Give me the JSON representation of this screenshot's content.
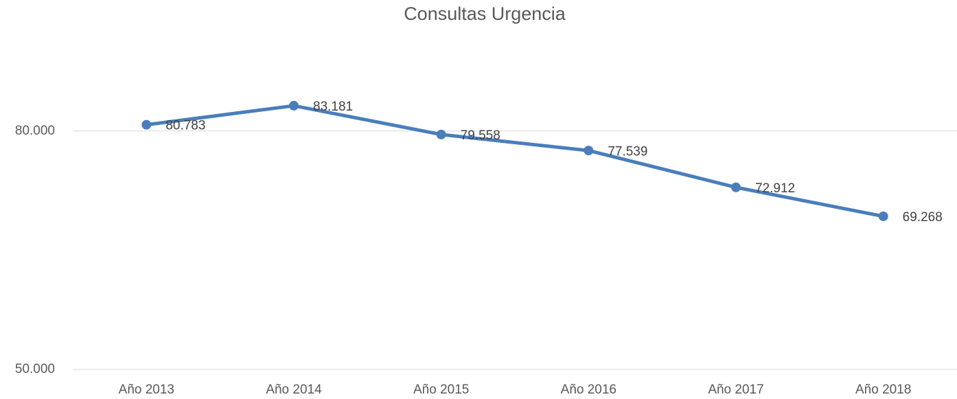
{
  "chart_data": {
    "type": "line",
    "title": "Consultas Urgencia",
    "categories": [
      "Año 2013",
      "Año 2014",
      "Año 2015",
      "Año 2016",
      "Año 2017",
      "Año 2018"
    ],
    "series": [
      {
        "name": "Consultas Urgencia",
        "color": "#4a7ebb",
        "values": [
          80783,
          83181,
          79558,
          77539,
          72912,
          69268
        ],
        "value_labels": [
          "80.783",
          "83.181",
          "79.558",
          "77.539",
          "72.912",
          "69.268"
        ]
      }
    ],
    "ylim": [
      50000,
      90000
    ],
    "yticks": [
      {
        "value": 50000,
        "label": "50.000"
      },
      {
        "value": 80000,
        "label": "80.000"
      }
    ],
    "grid": true
  }
}
